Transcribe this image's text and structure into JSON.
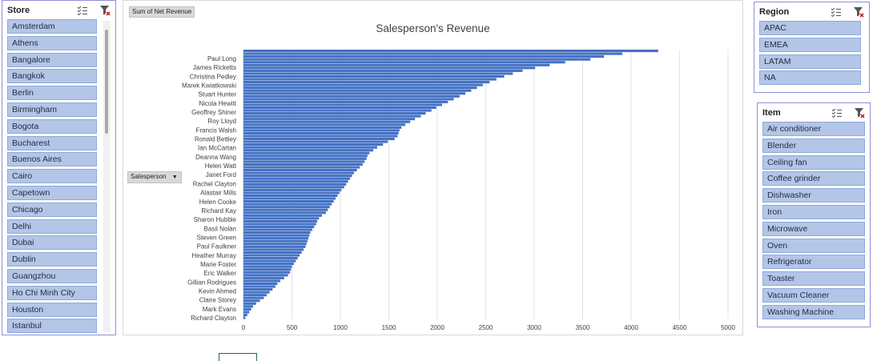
{
  "store_slicer": {
    "title": "Store",
    "items": [
      "Amsterdam",
      "Athens",
      "Bangalore",
      "Bangkok",
      "Berlin",
      "Birmingham",
      "Bogota",
      "Bucharest",
      "Buenos Aires",
      "Cairo",
      "Capetown",
      "Chicago",
      "Delhi",
      "Dubai",
      "Dublin",
      "Guangzhou",
      "Ho Chi Minh City",
      "Houston",
      "Istanbul"
    ]
  },
  "region_slicer": {
    "title": "Region",
    "items": [
      "APAC",
      "EMEA",
      "LATAM",
      "NA"
    ]
  },
  "item_slicer": {
    "title": "Item",
    "items": [
      "Air conditioner",
      "Blender",
      "Ceiling fan",
      "Coffee grinder",
      "Dishwasher",
      "Iron",
      "Microwave",
      "Oven",
      "Refrigerator",
      "Toaster",
      "Vacuum Cleaner",
      "Washing Machine"
    ]
  },
  "pivot_buttons": {
    "values_field": "Sum of Net Revenue",
    "row_field": "Salesperson"
  },
  "icons": {
    "multiselect": "multi-select-icon",
    "clearfilter": "clear-filter-icon",
    "dropdown": "dropdown-arrow-icon"
  },
  "colors": {
    "bar": "#4472c4",
    "slicer_item": "#b4c6e7",
    "slicer_border": "#8e8ed8"
  },
  "chart_data": {
    "type": "bar",
    "orientation": "horizontal",
    "title": "Salesperson's Revenue",
    "xlim": [
      0,
      5000
    ],
    "xticks": [
      0,
      500,
      1000,
      1500,
      2000,
      2500,
      3000,
      3500,
      4000,
      4500,
      5000
    ],
    "grid": true,
    "legend": "none",
    "visible_category_labels": [
      "Paul Long",
      "James Ricketts",
      "Christina Pedley",
      "Marek Kwiatkowski",
      "Stuart Hunter",
      "Nicola Hewitt",
      "Geoffrey Shiner",
      "Roy Lloyd",
      "Francis Walsh",
      "Ronald Bettley",
      "Ian McCartan",
      "Deanna Wang",
      "Helen Watt",
      "Janet Ford",
      "Rachel Clayton",
      "Alastair Mills",
      "Helen Cooke",
      "Richard Kay",
      "Sharon Hubble",
      "Basil Nolan",
      "Steven Green",
      "Paul Faulkner",
      "Heather Murray",
      "Marie Foster",
      "Eric Walker",
      "Gillian Rodrigues",
      "Kevin Ahmed",
      "Claire Storey",
      "Mark Evans",
      "Richard Clayton"
    ],
    "values": [
      4280,
      3910,
      3720,
      3580,
      3320,
      3160,
      3010,
      2880,
      2780,
      2690,
      2610,
      2540,
      2470,
      2410,
      2350,
      2290,
      2230,
      2170,
      2110,
      2050,
      1990,
      1940,
      1880,
      1830,
      1770,
      1720,
      1670,
      1630,
      1610,
      1600,
      1590,
      1560,
      1490,
      1440,
      1380,
      1340,
      1300,
      1280,
      1270,
      1250,
      1230,
      1200,
      1170,
      1140,
      1120,
      1100,
      1080,
      1060,
      1040,
      1010,
      990,
      970,
      950,
      930,
      910,
      890,
      870,
      850,
      810,
      780,
      760,
      750,
      730,
      710,
      690,
      680,
      670,
      660,
      650,
      640,
      620,
      600,
      580,
      560,
      540,
      520,
      500,
      490,
      480,
      460,
      420,
      380,
      350,
      330,
      300,
      270,
      240,
      210,
      170,
      130,
      100,
      80,
      60,
      40,
      20
    ]
  }
}
